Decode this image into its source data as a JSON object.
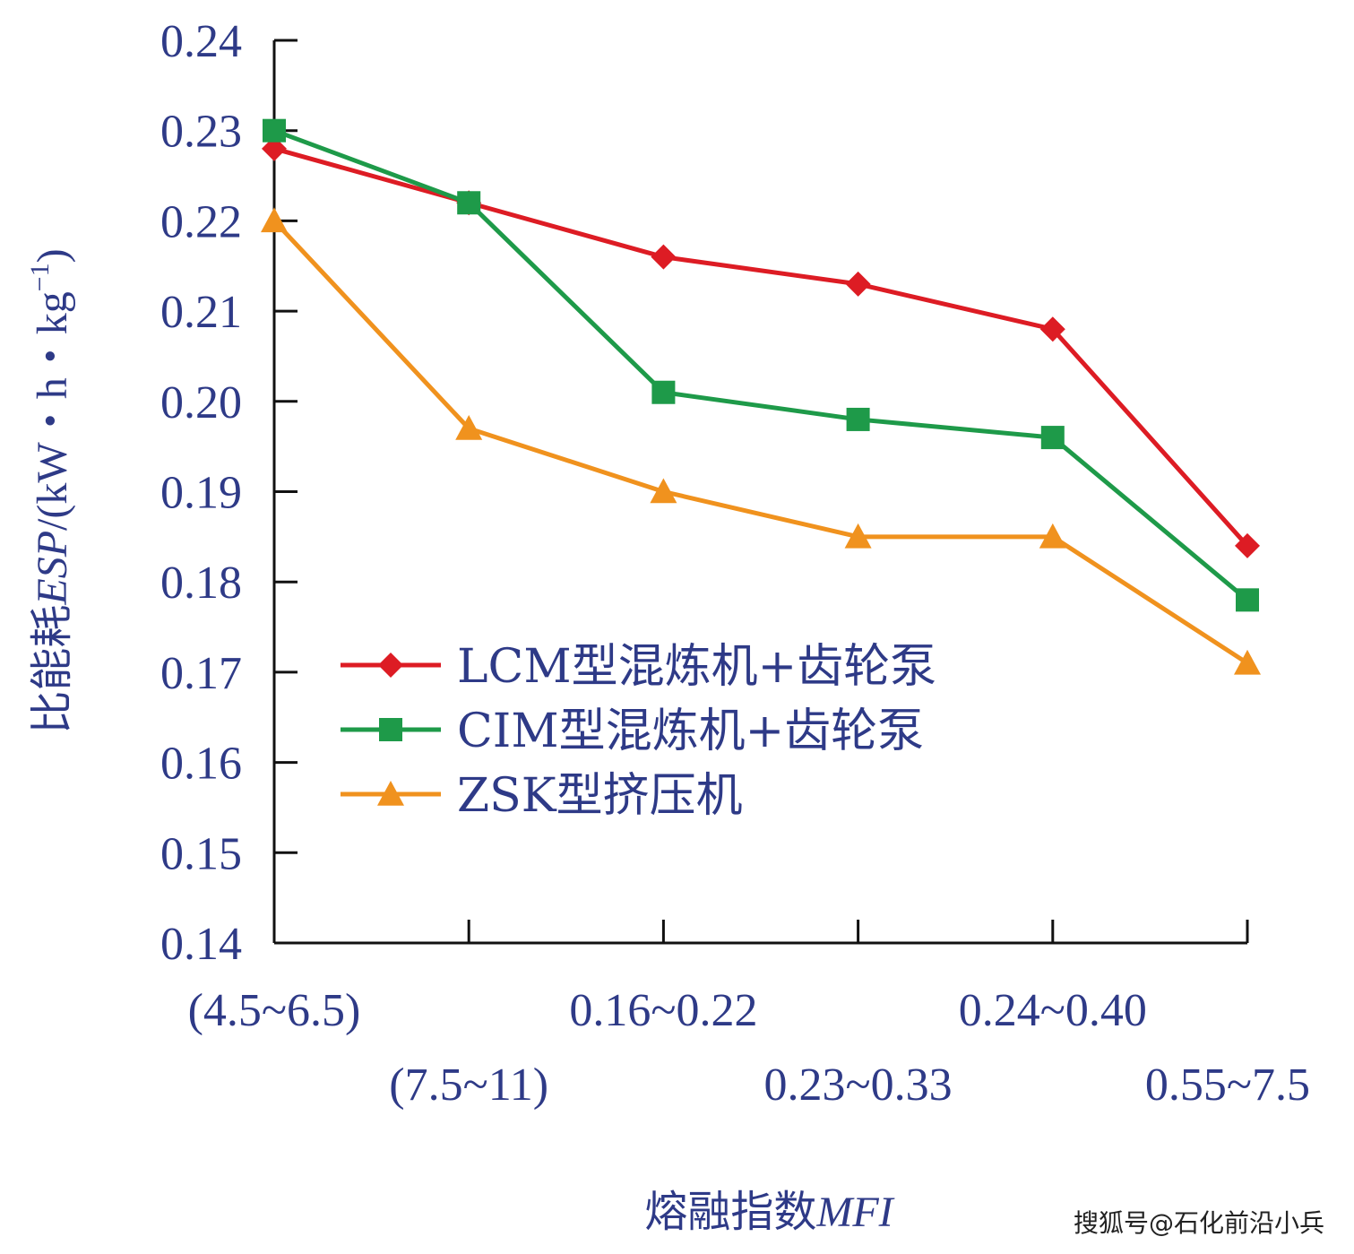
{
  "chart_data": {
    "type": "line",
    "title": "",
    "xlabel": "熔融指数MFI",
    "xlabel_parts": {
      "text": "熔融指数",
      "italic": "MFI"
    },
    "ylabel": "比能耗ESP/(kW・h・kg⁻¹)",
    "ylabel_parts": {
      "prefix": "比能耗",
      "italic": "ESP",
      "unit": "/(kW・h・kg",
      "sup": "−1",
      "close": ")"
    },
    "ylim": [
      0.14,
      0.24
    ],
    "yticks": [
      "0.14",
      "0.15",
      "0.16",
      "0.17",
      "0.18",
      "0.19",
      "0.20",
      "0.21",
      "0.22",
      "0.23",
      "0.24"
    ],
    "categories": [
      "(4.5~6.5)",
      "(7.5~11)",
      "0.16~0.22",
      "0.23~0.33",
      "0.24~0.40",
      "0.55~7.5"
    ],
    "grid": false,
    "legend_position": "lower-left",
    "series": [
      {
        "name": "LCM型混炼机+齿轮泵",
        "marker": "diamond",
        "color": "#dd1c24",
        "values": [
          0.228,
          0.222,
          0.216,
          0.213,
          0.208,
          0.184
        ]
      },
      {
        "name": "CIM型混炼机+齿轮泵",
        "marker": "square",
        "color": "#1e9a49",
        "values": [
          0.23,
          0.222,
          0.201,
          0.198,
          0.196,
          0.178
        ]
      },
      {
        "name": "ZSK型挤压机",
        "marker": "triangle",
        "color": "#f0921e",
        "values": [
          0.22,
          0.197,
          0.19,
          0.185,
          0.185,
          0.171
        ]
      }
    ]
  },
  "watermark": "搜狐号@石化前沿小兵"
}
